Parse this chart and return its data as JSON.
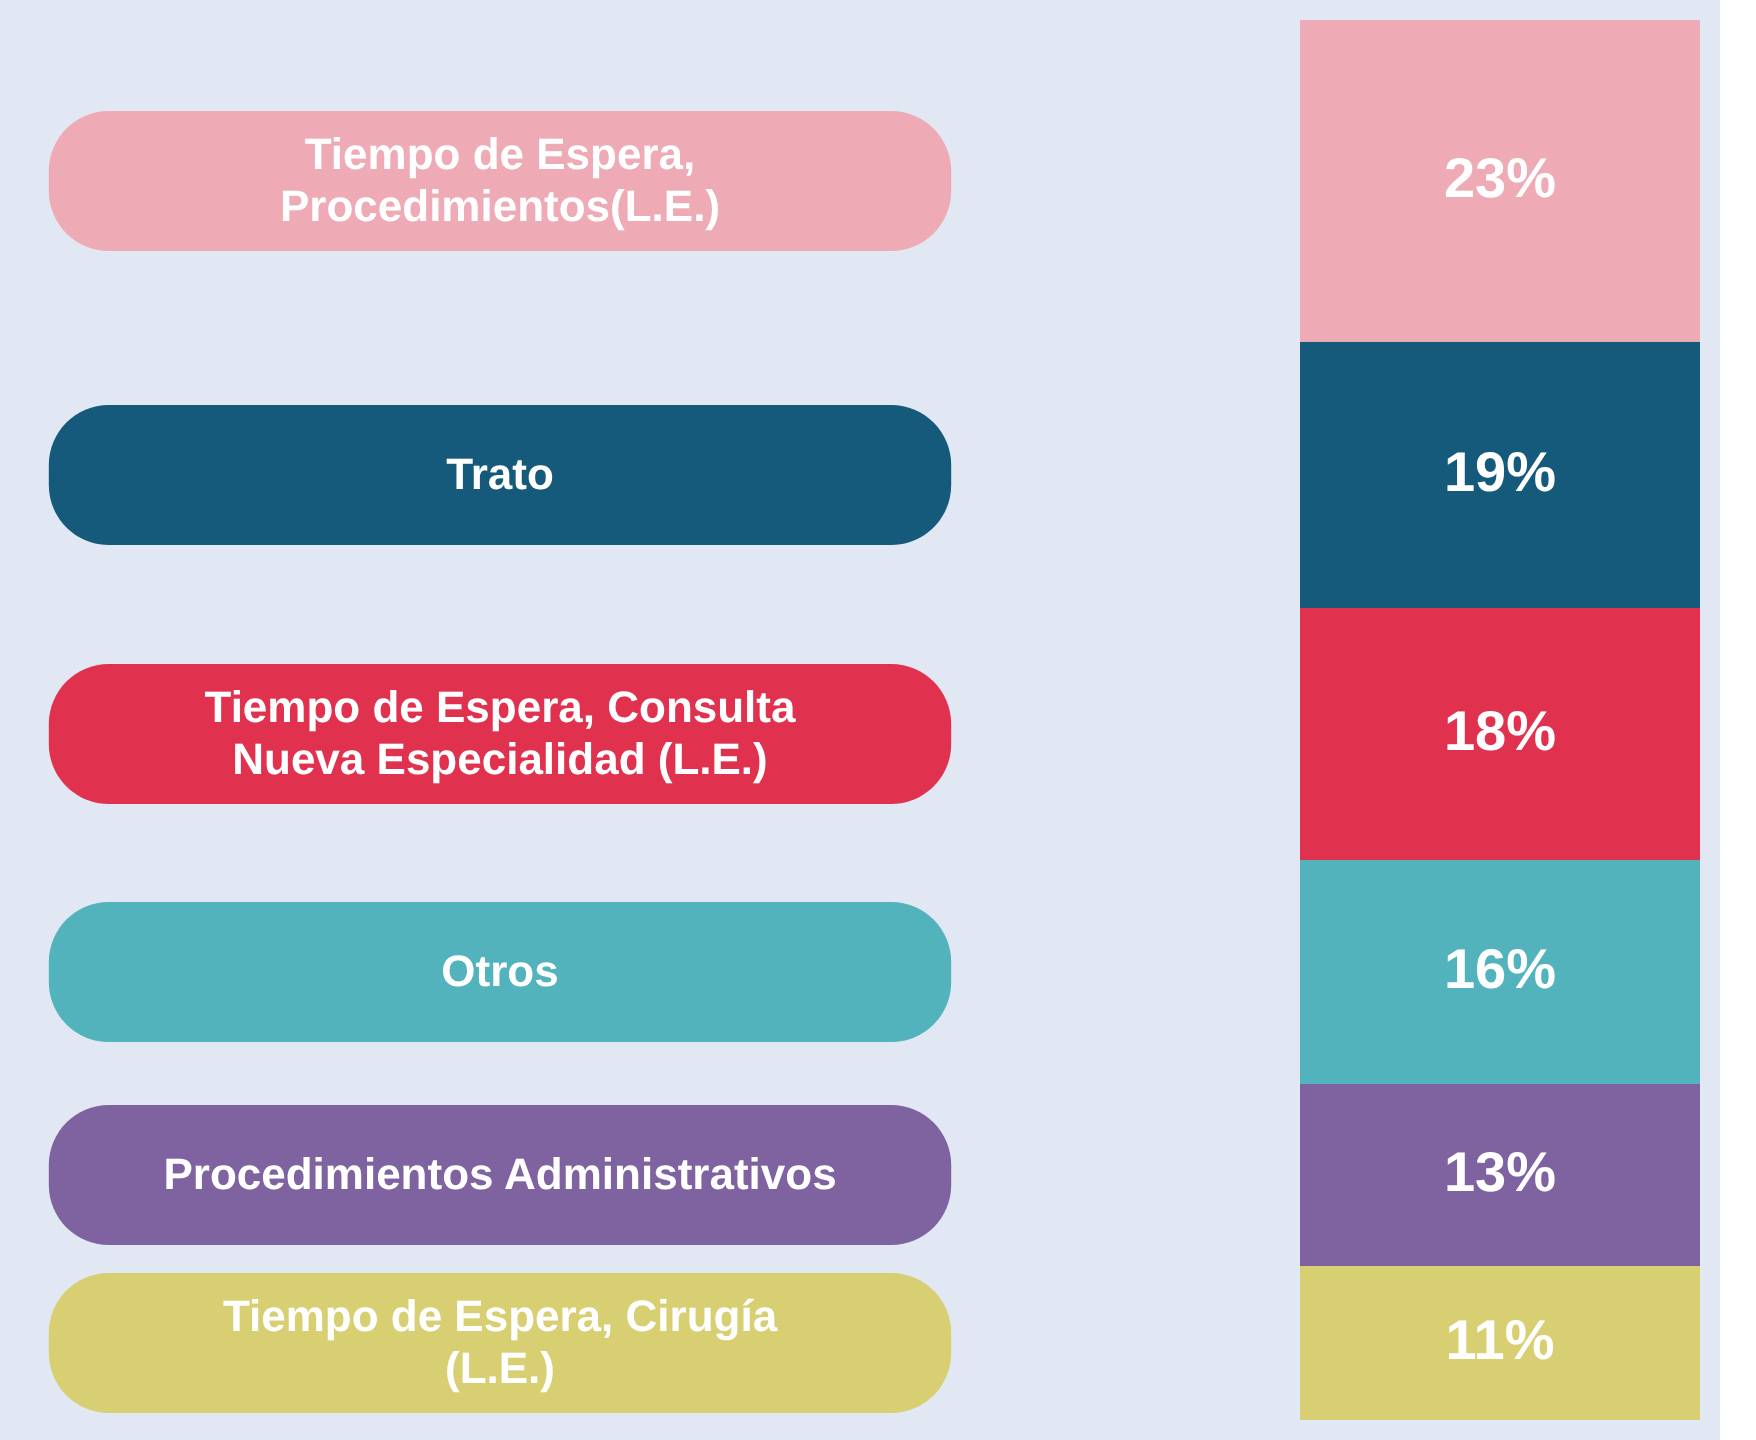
{
  "chart_data": {
    "type": "bar",
    "stacked": true,
    "legend": "left",
    "categories": [
      null
    ],
    "series": [
      {
        "name": "Tiempo de Espera, Cirugía (L.E.)",
        "color": "#d8cf72",
        "values": [
          11
        ],
        "value_labels": [
          "11%"
        ]
      },
      {
        "name": "Procedimientos Administrativos",
        "color": "#7e63a0",
        "values": [
          13
        ],
        "value_labels": [
          "13%"
        ]
      },
      {
        "name": "Otros",
        "color": "#52b3bd",
        "values": [
          16
        ],
        "value_labels": [
          "16%"
        ]
      },
      {
        "name": "Tiempo de Espera, Consulta Nueva Especialidad (L.E.)",
        "color": "#e0324f",
        "values": [
          18
        ],
        "value_labels": [
          "18%"
        ]
      },
      {
        "name": "Trato",
        "color": "#155a7a",
        "values": [
          19
        ],
        "value_labels": [
          "19%"
        ]
      },
      {
        "name": "Tiempo de Espera, Procedimientos(L.E.)",
        "color": "#eeaab5",
        "values": [
          23
        ],
        "value_labels": [
          "23%"
        ]
      }
    ]
  }
}
